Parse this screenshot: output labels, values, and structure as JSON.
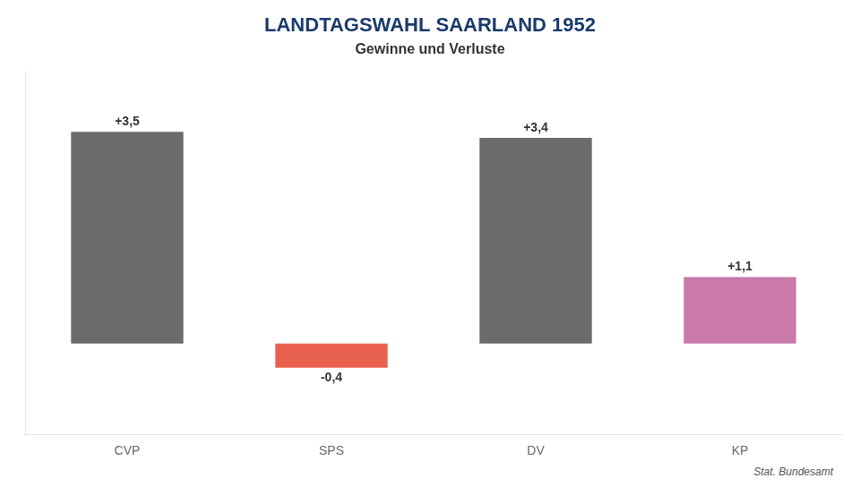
{
  "chart_data": {
    "type": "bar",
    "title": "LANDTAGSWAHL SAARLAND 1952",
    "subtitle": "Gewinne und Verluste",
    "source": "Stat. Bundesamt",
    "categories": [
      "CVP",
      "SPS",
      "DV",
      "KP"
    ],
    "values": [
      3.5,
      -0.4,
      3.4,
      1.1
    ],
    "value_labels": [
      "+3,5",
      "-0,4",
      "+3,4",
      "+1,1"
    ],
    "data_labels": true,
    "colors": [
      "#6b6b6b",
      "#e8614e",
      "#6b6b6b",
      "#c97aaa"
    ],
    "ylim": [
      -1.5,
      4.5
    ],
    "grid": false,
    "tick_labels": "x"
  }
}
